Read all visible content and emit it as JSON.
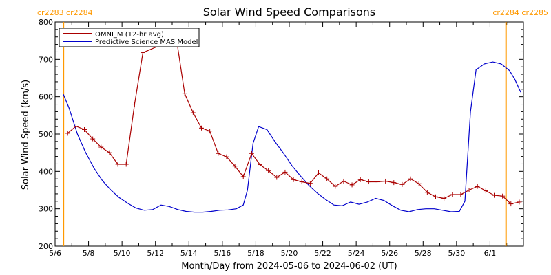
{
  "chart_data": {
    "type": "line",
    "title": "Solar Wind Speed Comparisons",
    "xlabel": "Month/Day from 2024-05-06 to 2024-06-02 (UT)",
    "ylabel": "Solar Wind Speed (km/s)",
    "xlim": [
      "2024-05-06",
      "2024-06-02"
    ],
    "ylim": [
      200,
      800
    ],
    "x_ticks": [
      "5/6",
      "5/8",
      "5/10",
      "5/12",
      "5/14",
      "5/16",
      "5/18",
      "5/20",
      "5/22",
      "5/24",
      "5/26",
      "5/28",
      "5/30",
      "6/1"
    ],
    "y_ticks": [
      200,
      300,
      400,
      500,
      600,
      700,
      800
    ],
    "legend_position": "top-left",
    "carrington_markers": [
      {
        "date": "2024-05-06 12:00",
        "labels": [
          "cr2283",
          "cr2284"
        ],
        "color": "#ff9900"
      },
      {
        "date": "2024-06-01 23:00",
        "labels": [
          "cr2284",
          "cr2285"
        ],
        "color": "#ff9900"
      }
    ],
    "series": [
      {
        "name": "OMNI_M (12-hr avg)",
        "color": "#aa0000",
        "markers": "plus",
        "points": [
          [
            "2024-05-06 18:00",
            502
          ],
          [
            "2024-05-07 06:00",
            521
          ],
          [
            "2024-05-07 18:00",
            512
          ],
          [
            "2024-05-08 06:00",
            487
          ],
          [
            "2024-05-08 18:00",
            465
          ],
          [
            "2024-05-09 06:00",
            450
          ],
          [
            "2024-05-09 18:00",
            419
          ],
          [
            "2024-05-10 06:00",
            419
          ],
          [
            "2024-05-10 18:00",
            580
          ],
          [
            "2024-05-11 06:00",
            718
          ],
          [
            "2024-05-13 06:00",
            756
          ],
          [
            "2024-05-13 18:00",
            608
          ],
          [
            "2024-05-14 06:00",
            557
          ],
          [
            "2024-05-14 18:00",
            516
          ],
          [
            "2024-05-15 06:00",
            508
          ],
          [
            "2024-05-15 18:00",
            448
          ],
          [
            "2024-05-16 06:00",
            439
          ],
          [
            "2024-05-16 18:00",
            414
          ],
          [
            "2024-05-17 06:00",
            386
          ],
          [
            "2024-05-17 18:00",
            448
          ],
          [
            "2024-05-18 06:00",
            418
          ],
          [
            "2024-05-18 18:00",
            402
          ],
          [
            "2024-05-19 06:00",
            384
          ],
          [
            "2024-05-19 18:00",
            398
          ],
          [
            "2024-05-20 06:00",
            378
          ],
          [
            "2024-05-20 18:00",
            372
          ],
          [
            "2024-05-21 06:00",
            368
          ],
          [
            "2024-05-21 18:00",
            396
          ],
          [
            "2024-05-22 06:00",
            380
          ],
          [
            "2024-05-22 18:00",
            360
          ],
          [
            "2024-05-23 06:00",
            374
          ],
          [
            "2024-05-23 18:00",
            364
          ],
          [
            "2024-05-24 06:00",
            378
          ],
          [
            "2024-05-24 18:00",
            372
          ],
          [
            "2024-05-25 06:00",
            372
          ],
          [
            "2024-05-25 18:00",
            374
          ],
          [
            "2024-05-26 06:00",
            370
          ],
          [
            "2024-05-26 18:00",
            365
          ],
          [
            "2024-05-27 06:00",
            380
          ],
          [
            "2024-05-27 18:00",
            367
          ],
          [
            "2024-05-28 06:00",
            344
          ],
          [
            "2024-05-28 18:00",
            332
          ],
          [
            "2024-05-29 06:00",
            328
          ],
          [
            "2024-05-29 18:00",
            338
          ],
          [
            "2024-05-30 06:00",
            338
          ],
          [
            "2024-05-30 18:00",
            350
          ],
          [
            "2024-05-31 06:00",
            360
          ],
          [
            "2024-05-31 18:00",
            348
          ],
          [
            "2024-06-01 06:00",
            336
          ],
          [
            "2024-06-01 18:00",
            334
          ],
          [
            "2024-06-02 06:00",
            313
          ],
          [
            "2024-06-02 18:00",
            318
          ]
        ]
      },
      {
        "name": "Predictive Science MAS Model",
        "color": "#0000cc",
        "markers": "none",
        "points": [
          [
            "2024-05-06 12:00",
            606
          ],
          [
            "2024-05-06 20:00",
            570
          ],
          [
            "2024-05-07 08:00",
            500
          ],
          [
            "2024-05-07 20:00",
            450
          ],
          [
            "2024-05-08 08:00",
            408
          ],
          [
            "2024-05-08 20:00",
            375
          ],
          [
            "2024-05-09 08:00",
            350
          ],
          [
            "2024-05-09 20:00",
            330
          ],
          [
            "2024-05-10 08:00",
            315
          ],
          [
            "2024-05-10 20:00",
            302
          ],
          [
            "2024-05-11 08:00",
            296
          ],
          [
            "2024-05-11 20:00",
            298
          ],
          [
            "2024-05-12 08:00",
            310
          ],
          [
            "2024-05-12 20:00",
            306
          ],
          [
            "2024-05-13 08:00",
            298
          ],
          [
            "2024-05-13 20:00",
            293
          ],
          [
            "2024-05-14 08:00",
            291
          ],
          [
            "2024-05-14 20:00",
            291
          ],
          [
            "2024-05-15 08:00",
            293
          ],
          [
            "2024-05-15 20:00",
            296
          ],
          [
            "2024-05-16 08:00",
            297
          ],
          [
            "2024-05-16 20:00",
            300
          ],
          [
            "2024-05-17 06:00",
            310
          ],
          [
            "2024-05-17 12:00",
            350
          ],
          [
            "2024-05-17 20:00",
            475
          ],
          [
            "2024-05-18 04:00",
            520
          ],
          [
            "2024-05-18 16:00",
            512
          ],
          [
            "2024-05-19 04:00",
            478
          ],
          [
            "2024-05-19 16:00",
            448
          ],
          [
            "2024-05-20 04:00",
            415
          ],
          [
            "2024-05-20 16:00",
            388
          ],
          [
            "2024-05-21 04:00",
            363
          ],
          [
            "2024-05-21 16:00",
            342
          ],
          [
            "2024-05-22 04:00",
            325
          ],
          [
            "2024-05-22 16:00",
            310
          ],
          [
            "2024-05-23 04:00",
            308
          ],
          [
            "2024-05-23 16:00",
            318
          ],
          [
            "2024-05-24 04:00",
            312
          ],
          [
            "2024-05-24 16:00",
            318
          ],
          [
            "2024-05-25 04:00",
            328
          ],
          [
            "2024-05-25 16:00",
            322
          ],
          [
            "2024-05-26 04:00",
            308
          ],
          [
            "2024-05-26 16:00",
            296
          ],
          [
            "2024-05-27 04:00",
            292
          ],
          [
            "2024-05-27 16:00",
            298
          ],
          [
            "2024-05-28 04:00",
            300
          ],
          [
            "2024-05-28 16:00",
            300
          ],
          [
            "2024-05-29 04:00",
            296
          ],
          [
            "2024-05-29 16:00",
            292
          ],
          [
            "2024-05-30 04:00",
            293
          ],
          [
            "2024-05-30 12:00",
            320
          ],
          [
            "2024-05-30 20:00",
            560
          ],
          [
            "2024-05-31 04:00",
            672
          ],
          [
            "2024-05-31 16:00",
            688
          ],
          [
            "2024-06-01 04:00",
            693
          ],
          [
            "2024-06-01 16:00",
            688
          ],
          [
            "2024-06-02 04:00",
            670
          ],
          [
            "2024-06-02 12:00",
            645
          ],
          [
            "2024-06-02 20:00",
            612
          ]
        ]
      }
    ]
  }
}
